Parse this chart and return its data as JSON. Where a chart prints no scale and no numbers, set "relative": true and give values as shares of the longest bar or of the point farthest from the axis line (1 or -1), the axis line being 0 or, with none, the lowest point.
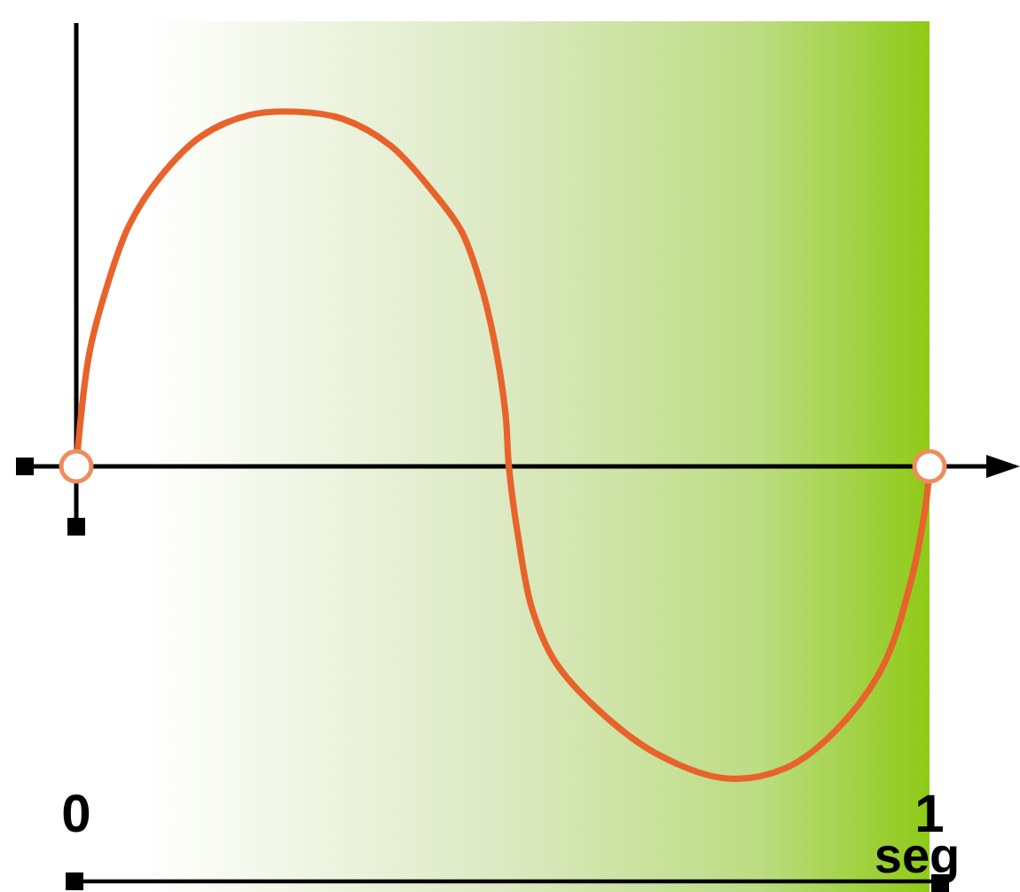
{
  "chart_data": {
    "type": "line",
    "relative": true,
    "xlabel": "seg",
    "xlim": [
      0,
      1
    ],
    "xticks": [
      0,
      1
    ],
    "tick_labels": "x",
    "line_style": "solid",
    "series": [
      {
        "color": "#e8632b",
        "x": [
          0,
          0.015,
          0.035,
          0.062,
          0.098,
          0.146,
          0.202,
          0.258,
          0.312,
          0.368,
          0.416,
          0.451,
          0.472,
          0.489,
          0.503,
          0.507,
          0.518,
          0.534,
          0.561,
          0.611,
          0.68,
          0.763,
          0.832,
          0.888,
          0.944,
          0.977,
          0.996,
          1
        ],
        "values": [
          0,
          0.315,
          0.5,
          0.68,
          0.815,
          0.93,
          0.99,
          1,
          0.98,
          0.905,
          0.78,
          0.665,
          0.53,
          0.365,
          0.15,
          0,
          -0.2,
          -0.4,
          -0.55,
          -0.685,
          -0.81,
          -0.88,
          -0.85,
          -0.75,
          -0.57,
          -0.335,
          -0.1,
          0
        ]
      },
      {
        "type": "scatter",
        "color": "#f08c5c",
        "marker": "circle",
        "x": [
          0,
          1
        ],
        "values": [
          0,
          0
        ]
      }
    ]
  }
}
